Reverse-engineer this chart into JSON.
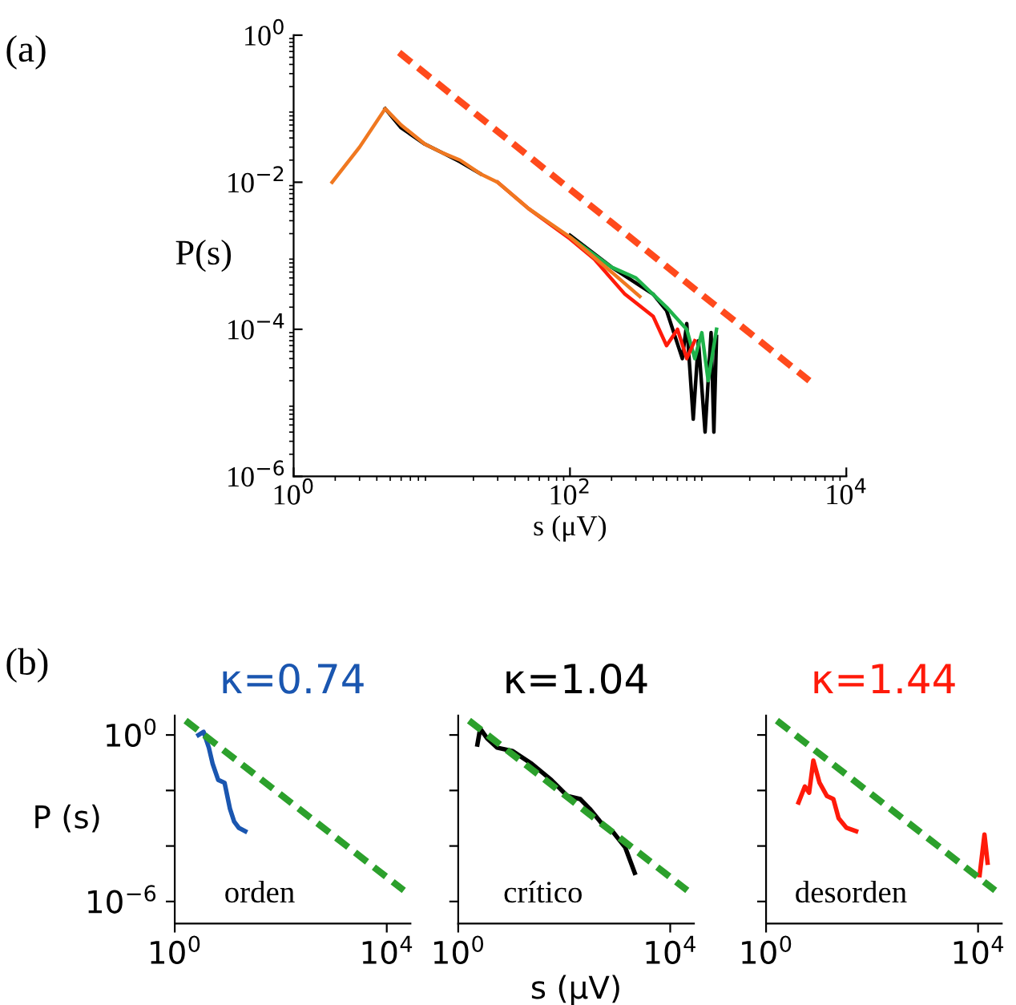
{
  "chart_data": [
    {
      "type": "line",
      "ylabel": "P(s)",
      "xlabel": "s (μV)",
      "log": "xy",
      "xlim": [
        1,
        10000
      ],
      "ylim": [
        1e-06,
        1
      ],
      "xticks": [
        {
          "value": 1,
          "label": "10$^{0}$"
        },
        {
          "value": 100,
          "label": "10$^{2}$"
        },
        {
          "value": 10000,
          "label": "10$^{4}$"
        }
      ],
      "yticks": [
        {
          "value": 1,
          "label": "10$^{0}$"
        },
        {
          "value": 0.01,
          "label": "10$^{−2}$"
        },
        {
          "value": 0.0001,
          "label": "10$^{−4}$"
        },
        {
          "value": 1e-06,
          "label": "10$^{−6}$"
        }
      ],
      "grid": false,
      "annotations": [
        "(a)"
      ],
      "series": [
        {
          "color": "#000000",
          "x": [
            4.6,
            6,
            8.9,
            12,
            16,
            22.5,
            null,
            100,
            200,
            400,
            500,
            650,
            700,
            780,
            850,
            950,
            1050,
            1100,
            1150
          ],
          "values": [
            0.1,
            0.055,
            0.033,
            0.025,
            0.019,
            0.013,
            null,
            0.0019,
            0.0007,
            0.0003,
            0.00018,
            4e-05,
            0.00012,
            6e-06,
            7e-05,
            4e-06,
            9e-05,
            4e-06,
            8e-05
          ]
        },
        {
          "color": "#1fb34a",
          "x": [
            100,
            200,
            300,
            500,
            700,
            800,
            900,
            1000,
            1150
          ],
          "values": [
            0.0018,
            0.0007,
            0.0005,
            0.0002,
            0.0001,
            4e-05,
            9e-05,
            2e-05,
            0.0001
          ]
        },
        {
          "color": "#ff1a0a",
          "x": [
            30,
            50,
            100,
            150,
            250,
            400,
            500,
            600,
            700,
            800
          ],
          "values": [
            0.01,
            0.0044,
            0.0017,
            0.0009,
            0.0003,
            0.00015,
            6e-05,
            0.0001,
            4e-05,
            7e-05
          ]
        },
        {
          "color": "#f07820",
          "x": [
            1.9,
            3,
            4.6,
            6,
            8.9,
            12,
            16,
            22.5,
            30,
            50,
            100,
            200,
            320
          ],
          "values": [
            0.01,
            0.03,
            0.1,
            0.06,
            0.033,
            0.025,
            0.02,
            0.013,
            0.01,
            0.0044,
            0.0018,
            0.0006,
            0.00028
          ]
        },
        {
          "color": "#ff4a1c",
          "line_style": "dashed",
          "x": [
            5.8,
            5400
          ],
          "values": [
            0.58,
            2e-05
          ]
        }
      ]
    },
    {
      "type": "line",
      "title": "κ=0.74",
      "ylabel": "P (s)",
      "log": "xy",
      "xlim": [
        1,
        28000
      ],
      "ylim": [
        1.6e-07,
        5
      ],
      "xticks": [
        {
          "value": 1,
          "label": "10$^{0}$"
        },
        {
          "value": 10000,
          "label": "10$^{4}$"
        }
      ],
      "yticks": [
        {
          "value": 1,
          "label": "10$^{0}$"
        },
        {
          "value": 0.01,
          "label": null
        },
        {
          "value": 0.0001,
          "label": null
        },
        {
          "value": 1e-06,
          "label": "10$^{−6}$"
        }
      ],
      "grid": false,
      "annotations": [
        "(b)",
        "orden"
      ],
      "series": [
        {
          "color": "#1a56b0",
          "x": [
            2.8,
            3.5,
            4.4,
            5.2,
            6.6,
            8.7,
            11,
            13.2,
            16.2,
            21.4
          ],
          "values": [
            1,
            1.3,
            0.35,
            0.09,
            0.024,
            0.019,
            0.0022,
            0.00076,
            0.00045,
            0.00034
          ]
        },
        {
          "color": "#2ca02c",
          "line_style": "dashed",
          "x": [
            1.6,
            21000
          ],
          "values": [
            3.3,
            2.5e-06
          ]
        }
      ]
    },
    {
      "type": "line",
      "title": "κ=1.04",
      "xlabel": "s (μV)",
      "log": "xy",
      "xlim": [
        1,
        28000
      ],
      "ylim": [
        1.6e-07,
        5
      ],
      "tick_labels": "x",
      "xticks": [
        {
          "value": 1,
          "label": "10$^{0}$"
        },
        {
          "value": 10000,
          "label": "10$^{4}$"
        }
      ],
      "yticks": [
        {
          "value": 1,
          "label": null
        },
        {
          "value": 0.01,
          "label": null
        },
        {
          "value": 0.0001,
          "label": null
        },
        {
          "value": 1e-06,
          "label": null
        }
      ],
      "grid": false,
      "annotations": [
        "crítico"
      ],
      "series": [
        {
          "color": "#000000",
          "x": [
            2.3,
            2.6,
            3.5,
            5.4,
            10.7,
            24.5,
            57,
            115,
            200,
            302,
            537,
            813,
            1413,
            2138
          ],
          "values": [
            0.45,
            1.7,
            0.76,
            0.35,
            0.26,
            0.091,
            0.024,
            0.0063,
            0.0049,
            0.0022,
            0.00058,
            0.00034,
            8.9e-05,
            1.07e-05
          ]
        },
        {
          "color": "#2ca02c",
          "line_style": "dashed",
          "x": [
            1.6,
            21000
          ],
          "values": [
            3.3,
            2.5e-06
          ]
        }
      ]
    },
    {
      "type": "line",
      "title": "κ=1.44",
      "log": "xy",
      "xlim": [
        1,
        28000
      ],
      "ylim": [
        1.6e-07,
        5
      ],
      "tick_labels": "x",
      "xticks": [
        {
          "value": 1,
          "label": "10$^{0}$"
        },
        {
          "value": 10000,
          "label": "10$^{4}$"
        }
      ],
      "yticks": [
        {
          "value": 1,
          "label": null
        },
        {
          "value": 0.01,
          "label": null
        },
        {
          "value": 0.0001,
          "label": null
        },
        {
          "value": 1e-06,
          "label": null
        }
      ],
      "grid": false,
      "annotations": [
        "desorden"
      ],
      "series": [
        {
          "color": "#ff1a0a",
          "x": [
            4.1,
            5.4,
            6.5,
            7.8,
            10.2,
            14.1,
            18.6,
            23.4,
            33,
            50,
            8700,
            10700,
            13200,
            15100
          ],
          "values": [
            0.0037,
            0.014,
            0.0083,
            0.12,
            0.019,
            0.0063,
            0.0049,
            0.001,
            0.00045,
            0.00034,
            null,
            8.9e-06,
            0.00026,
            2.5e-05
          ]
        },
        {
          "color": "#2ca02c",
          "line_style": "dashed",
          "x": [
            1.6,
            21000
          ],
          "values": [
            3.3,
            2.5e-06
          ]
        }
      ]
    }
  ]
}
